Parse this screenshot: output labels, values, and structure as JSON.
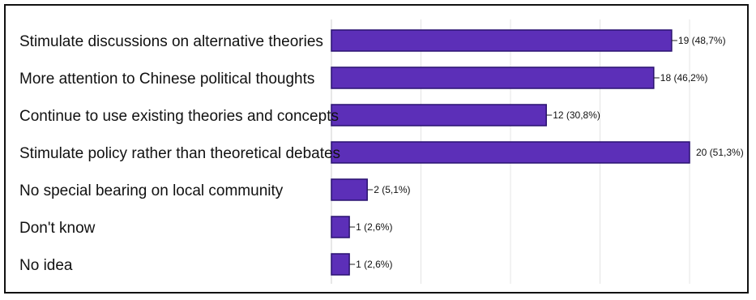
{
  "chart_data": {
    "type": "bar",
    "orientation": "horizontal",
    "categories": [
      "Stimulate discussions on alternative theories",
      "More attention to Chinese political thoughts",
      "Continue to use existing theories and concepts",
      "Stimulate policy rather than theoretical debates",
      "No special bearing on local community",
      "Don't know",
      "No idea"
    ],
    "values": [
      19,
      18,
      12,
      20,
      2,
      1,
      1
    ],
    "data_labels": [
      "19 (48,7%)",
      "18 (46,2%)",
      "12 (30,8%)",
      "20 (51,3%)",
      "2 (5,1%)",
      "1 (2,6%)",
      "1 (2,6%)"
    ],
    "percentages": [
      48.7,
      46.2,
      30.8,
      51.3,
      5.1,
      2.6,
      2.6
    ],
    "xlim": [
      0,
      20
    ],
    "title": "",
    "xlabel": "",
    "ylabel": "",
    "grid": "vertical",
    "legend": "none",
    "bar_color": "#5c2fb8",
    "bar_border_color": "#2a1270"
  }
}
